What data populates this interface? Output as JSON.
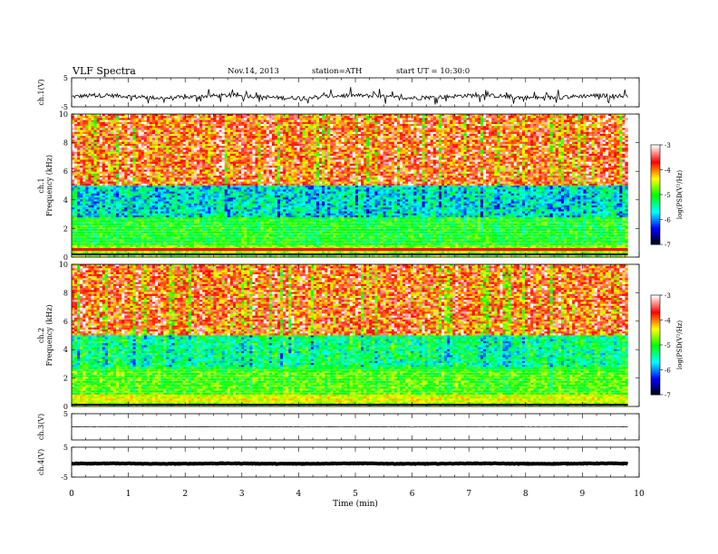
{
  "header": {
    "title": "VLF Spectra",
    "date": "Nov.14, 2013",
    "station": "station=ATH",
    "start": "start UT =   10:30:0"
  },
  "colorbar": {
    "label": "log(PSD(V²/Hz)",
    "ticks": [
      "-3",
      "-4",
      "-5",
      "-6",
      "-7"
    ],
    "scale": [
      "#000000",
      "#0000ff",
      "#00ffff",
      "#00ff00",
      "#ffff00",
      "#ff0000",
      "#ffffff"
    ]
  },
  "chart_data": [
    {
      "type": "line",
      "panel": "ch1-waveform",
      "ylabel": "ch.1(V)",
      "ylim": [
        -5,
        5
      ],
      "yticks": [
        "5",
        "-5"
      ],
      "xlim": [
        0,
        10
      ],
      "data_extent_min": 9.8,
      "baseline_v": -1.5,
      "color": "#000000"
    },
    {
      "type": "heatmap",
      "panel": "ch1-spectrogram",
      "ylabel": [
        "ch.1",
        "Frequency (kHz)"
      ],
      "ylim": [
        0,
        10
      ],
      "yticks": [
        "0",
        "2",
        "4",
        "6",
        "8",
        "10"
      ],
      "xlim": [
        0,
        10
      ],
      "data_extent_min": 9.8,
      "color_range": [
        -7,
        -3
      ],
      "color_label": "log(PSD(V²/Hz)"
    },
    {
      "type": "heatmap",
      "panel": "ch2-spectrogram",
      "ylabel": [
        "ch.2",
        "Frequency (kHz)"
      ],
      "ylim": [
        0,
        10
      ],
      "yticks": [
        "0",
        "2",
        "4",
        "6",
        "8",
        "10"
      ],
      "xlim": [
        0,
        10
      ],
      "data_extent_min": 9.8,
      "color_range": [
        -7,
        -3
      ],
      "color_label": "log(PSD(V²/Hz)"
    },
    {
      "type": "line",
      "panel": "ch3-waveform",
      "ylabel": "ch.3(V)",
      "ylim": [
        -5,
        5
      ],
      "yticks": [
        "5"
      ],
      "xlim": [
        0,
        10
      ],
      "data_extent_min": 9.8,
      "baseline_v": 0,
      "color": "#000000"
    },
    {
      "type": "line",
      "panel": "ch4-waveform",
      "ylabel": "ch.4(V)",
      "ylim": [
        -5,
        5
      ],
      "yticks": [
        "5",
        "-5"
      ],
      "xlim": [
        0,
        10
      ],
      "data_extent_min": 9.8,
      "baseline_v": -0.5,
      "color": "#000000"
    }
  ],
  "xaxis": {
    "label": "Time (min)",
    "ticks": [
      "0",
      "1",
      "2",
      "3",
      "4",
      "5",
      "6",
      "7",
      "8",
      "9",
      "10"
    ]
  }
}
